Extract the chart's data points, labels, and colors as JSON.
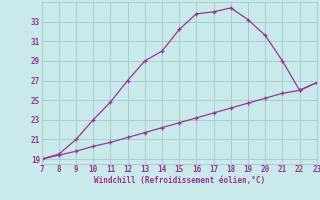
{
  "xlabel": "Windchill (Refroidissement éolien,°C)",
  "bg_color": "#c8eaea",
  "grid_color": "#aacccc",
  "line_color": "#993399",
  "curve_x": [
    7,
    8,
    9,
    10,
    11,
    12,
    13,
    14,
    15,
    16,
    17,
    18,
    19,
    20,
    21,
    22,
    23
  ],
  "curve_y": [
    19.0,
    19.5,
    21.0,
    23.0,
    24.8,
    27.0,
    29.0,
    30.0,
    32.2,
    33.8,
    34.0,
    34.4,
    33.2,
    31.6,
    29.0,
    26.0,
    26.8
  ],
  "straight_x": [
    7,
    8,
    9,
    10,
    11,
    12,
    13,
    14,
    15,
    16,
    17,
    18,
    19,
    20,
    21,
    22,
    23
  ],
  "straight_y": [
    19.0,
    19.4,
    19.8,
    20.3,
    20.7,
    21.2,
    21.7,
    22.2,
    22.7,
    23.2,
    23.7,
    24.2,
    24.7,
    25.2,
    25.7,
    26.0,
    26.8
  ],
  "xlim": [
    7,
    23
  ],
  "ylim": [
    18.5,
    35.0
  ],
  "xticks": [
    7,
    8,
    9,
    10,
    11,
    12,
    13,
    14,
    15,
    16,
    17,
    18,
    19,
    20,
    21,
    22,
    23
  ],
  "yticks": [
    19,
    21,
    23,
    25,
    27,
    29,
    31,
    33
  ]
}
